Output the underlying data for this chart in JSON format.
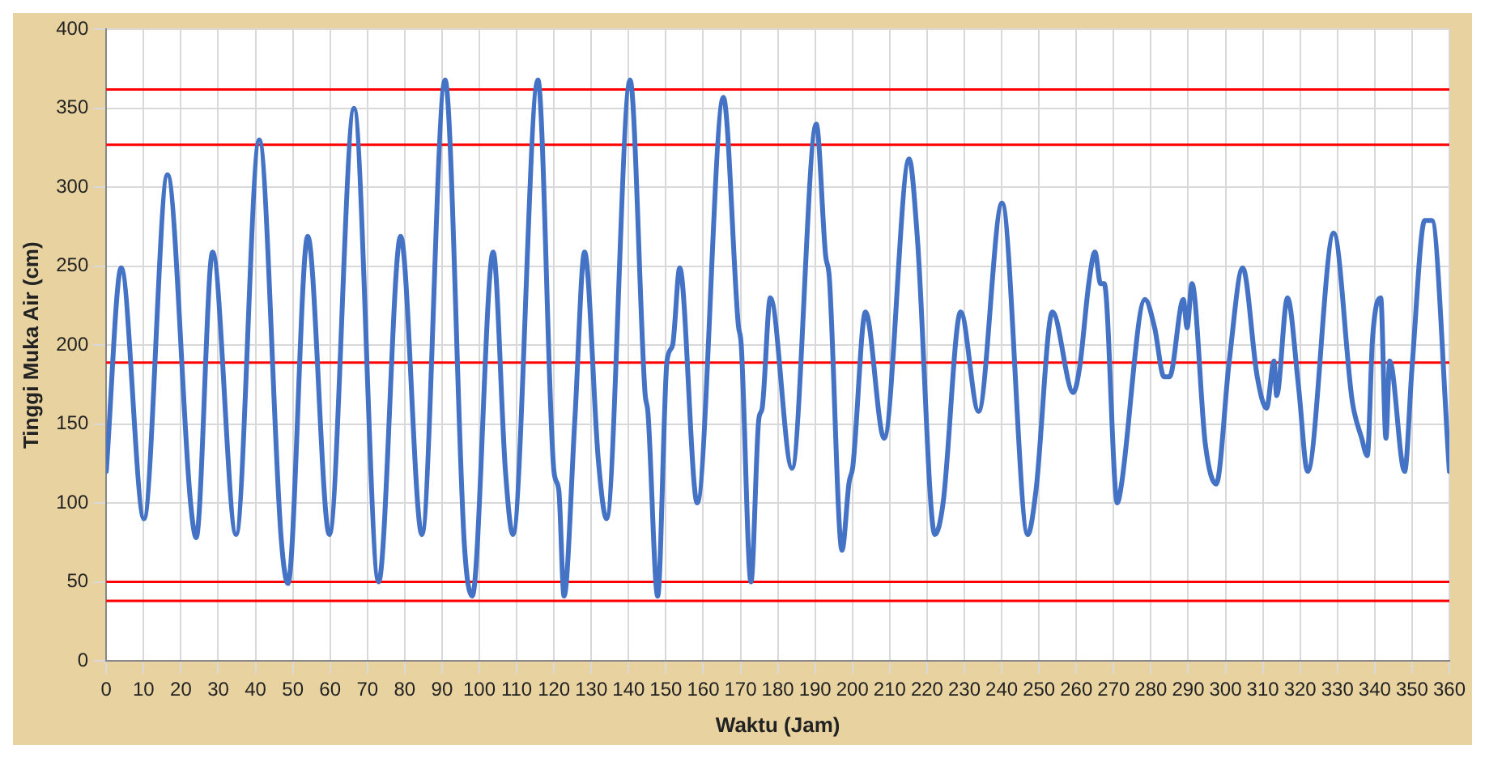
{
  "chart_data": {
    "type": "line",
    "xlabel": "Waktu (Jam)",
    "ylabel": "Tinggi Muka Air (cm)",
    "xlim": [
      0,
      360
    ],
    "xticks": [
      0,
      10,
      20,
      30,
      40,
      50,
      60,
      70,
      80,
      90,
      100,
      110,
      120,
      130,
      140,
      150,
      160,
      170,
      180,
      190,
      200,
      210,
      220,
      230,
      240,
      250,
      260,
      270,
      280,
      290,
      300,
      310,
      320,
      330,
      340,
      350,
      360
    ],
    "ylim": [
      0,
      400
    ],
    "yticks": [
      0,
      50,
      100,
      150,
      200,
      250,
      300,
      350,
      400
    ],
    "grid": true,
    "legend": false,
    "marker": "none",
    "line_style": "solid",
    "series": [
      {
        "color": "#4472c4",
        "x": [
          0,
          4,
          10.1,
          16.4,
          22.6,
          24.1,
          28.5,
          34.8,
          41,
          46.9,
          48.7,
          54,
          59.8,
          66.4,
          73,
          78.9,
          84.6,
          90.8,
          96,
          98.1,
          103.7,
          107,
          109,
          115.7,
          120,
          121.3,
          122.7,
          125.6,
          128.2,
          131.9,
          134.1,
          140.4,
          144.4,
          145.2,
          147.8,
          150.3,
          151.8,
          153.7,
          158.4,
          165.4,
          169.4,
          170.2,
          172.8,
          174.9,
          175.8,
          178,
          183.8,
          190.3,
          192.8,
          193.8,
          197.2,
          199.1,
          200.1,
          203.5,
          208.5,
          215.2,
          217.4,
          222.1,
          224.3,
          229,
          233.8,
          240.1,
          247,
          249.2,
          253.6,
          259.2,
          260.9,
          263.4,
          265,
          266.5,
          267.5,
          271,
          272,
          278.4,
          281,
          283.5,
          285,
          288.7,
          289.7,
          291,
          294.6,
          297.5,
          301,
          304.6,
          308.5,
          311,
          313,
          313.7,
          316.6,
          319.6,
          322,
          329,
          334,
          336.5,
          338,
          339.4,
          341.6,
          343,
          344,
          348,
          350,
          353.4,
          355.3,
          360
        ],
        "values": [
          120,
          249,
          90,
          308,
          100,
          78,
          259,
          80,
          330,
          77,
          49,
          269,
          80,
          350,
          50,
          269,
          80,
          368,
          73,
          41,
          259,
          120,
          80,
          368,
          120,
          108,
          41,
          153,
          259,
          127,
          90,
          368,
          170,
          157,
          41,
          190,
          200,
          249,
          100,
          357,
          213,
          200,
          50,
          153,
          160,
          230,
          122,
          340,
          257,
          243,
          70,
          113,
          123,
          221,
          141,
          318,
          268,
          80,
          100,
          221,
          158,
          290,
          80,
          108,
          221,
          170,
          186,
          240,
          259,
          239,
          239,
          100,
          110,
          229,
          211,
          180,
          180,
          229,
          211,
          239,
          137,
          112,
          190,
          249,
          180,
          160,
          190,
          168,
          230,
          173,
          120,
          271,
          164,
          141,
          130,
          204,
          230,
          141,
          190,
          120,
          186,
          279,
          279,
          120
        ]
      }
    ],
    "ref_lines": [
      {
        "axis": "y",
        "value": 362,
        "color": "#ff0000"
      },
      {
        "axis": "y",
        "value": 327,
        "color": "#ff0000"
      },
      {
        "axis": "y",
        "value": 189,
        "color": "#ff0000"
      },
      {
        "axis": "y",
        "value": 50,
        "color": "#ff0000"
      },
      {
        "axis": "y",
        "value": 38,
        "color": "#ff0000"
      }
    ]
  }
}
